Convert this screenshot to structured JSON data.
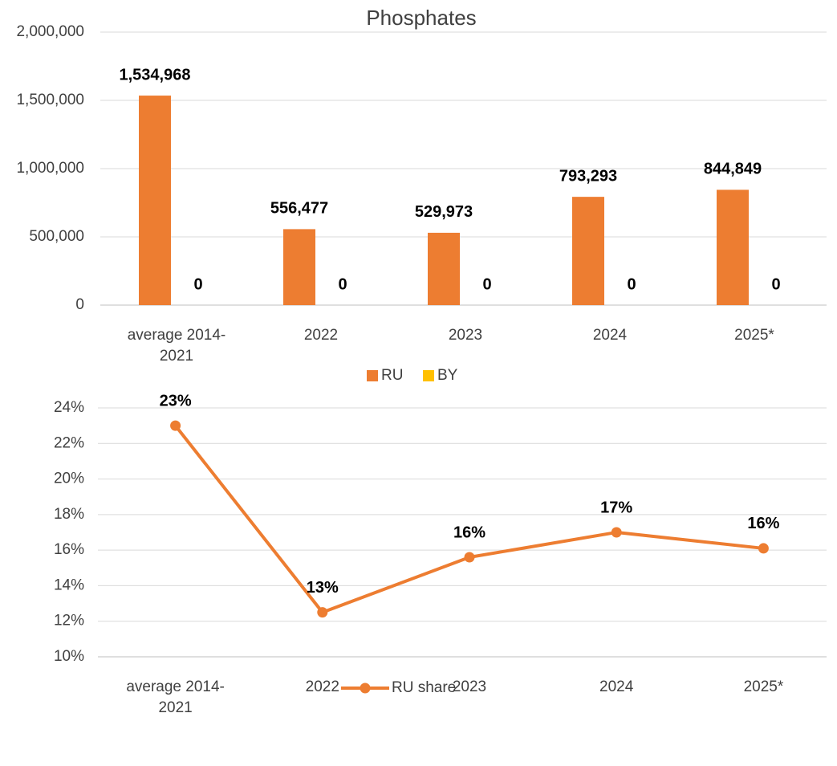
{
  "chart_data": [
    {
      "type": "bar",
      "title": "Phosphates",
      "categories": [
        "average 2014-2021",
        "2022",
        "2023",
        "2024",
        "2025*"
      ],
      "series": [
        {
          "name": "RU",
          "color": "#ED7D31",
          "values": [
            1534968,
            556477,
            529973,
            793293,
            844849
          ],
          "value_labels": [
            "1,534,968",
            "556,477",
            "529,973",
            "793,293",
            "844,849"
          ]
        },
        {
          "name": "BY",
          "color": "#FFC000",
          "values": [
            0,
            0,
            0,
            0,
            0
          ]
        }
      ],
      "ylim": [
        0,
        2000000
      ],
      "yticks": [
        0,
        {
          "value": 500000,
          "label": "500,000"
        },
        {
          "value": 1000000,
          "label": "1,000,000"
        },
        {
          "value": 1500000,
          "label": "1,500,000"
        },
        {
          "value": 2000000,
          "label": "2,000,000"
        }
      ],
      "grid": true,
      "legend": "bottom"
    },
    {
      "type": "line",
      "categories": [
        "average 2014-2021",
        "2022",
        "2023",
        "2024",
        "2025*"
      ],
      "series": [
        {
          "name": "RU share",
          "color": "#ED7D31",
          "values": [
            23,
            12.5,
            15.6,
            17,
            16.1
          ],
          "value_labels": [
            "23%",
            "13%",
            "16%",
            "17%",
            "16%"
          ]
        }
      ],
      "ylim": [
        10,
        24
      ],
      "yticks": [
        {
          "value": 10,
          "label": "10%"
        },
        {
          "value": 12,
          "label": "12%"
        },
        {
          "value": 14,
          "label": "14%"
        },
        {
          "value": 16,
          "label": "16%"
        },
        {
          "value": 18,
          "label": "18%"
        },
        {
          "value": 20,
          "label": "20%"
        },
        {
          "value": 22,
          "label": "22%"
        },
        {
          "value": 24,
          "label": "24%"
        }
      ],
      "grid": true,
      "legend": "bottom"
    }
  ]
}
